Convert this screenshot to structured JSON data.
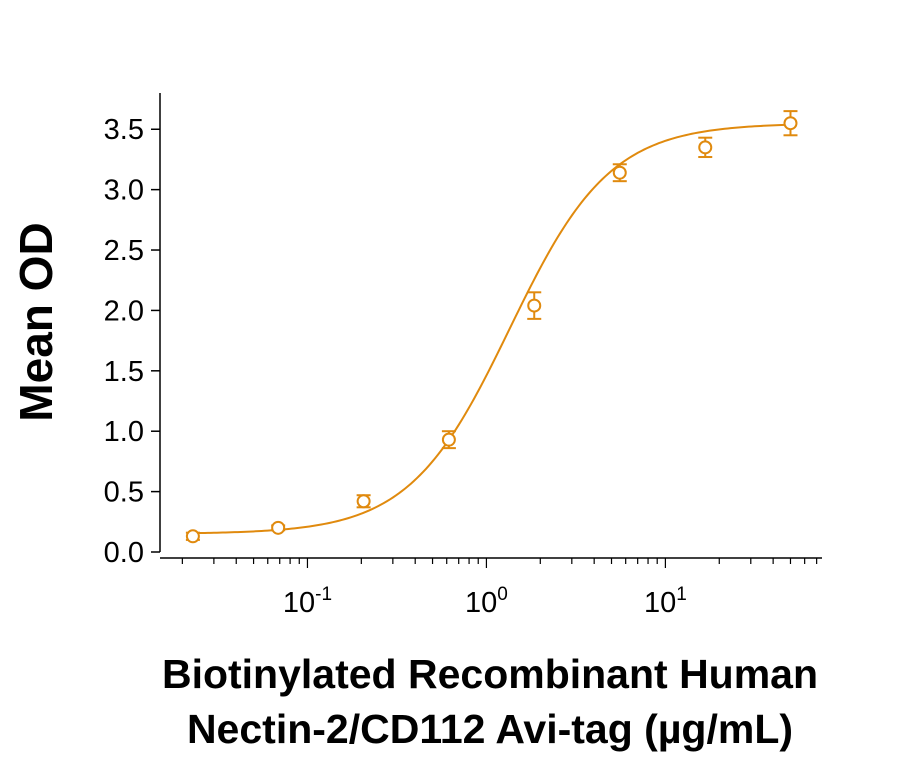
{
  "chart_data": {
    "type": "scatter",
    "xlabel_lines": [
      "Biotinylated Recombinant Human",
      "Nectin-2/CD112 Avi-tag (µg/mL)"
    ],
    "ylabel": "Mean OD",
    "x_scale": "log",
    "xlim": [
      0.015,
      75
    ],
    "ylim": [
      0,
      3.8
    ],
    "y_ticks": [
      "0.0",
      "0.5",
      "1.0",
      "1.5",
      "2.0",
      "2.5",
      "3.0",
      "3.5"
    ],
    "x_ticks": [
      {
        "value": 0.1,
        "base": "10",
        "exp": "-1"
      },
      {
        "value": 1,
        "base": "10",
        "exp": "0"
      },
      {
        "value": 10,
        "base": "10",
        "exp": "1"
      }
    ],
    "series": [
      {
        "x": [
          0.0229,
          0.0686,
          0.206,
          0.617,
          1.85,
          5.56,
          16.7,
          50
        ],
        "y": [
          0.13,
          0.2,
          0.42,
          0.93,
          2.04,
          3.14,
          3.35,
          3.55
        ],
        "error": [
          0.03,
          0.02,
          0.05,
          0.07,
          0.11,
          0.07,
          0.08,
          0.1
        ],
        "fit": {
          "bottom": 0.15,
          "top": 3.55,
          "ec50": 1.35,
          "hill": 1.55
        }
      }
    ],
    "color": "#E08A0E",
    "grid": false,
    "legend": "none"
  }
}
